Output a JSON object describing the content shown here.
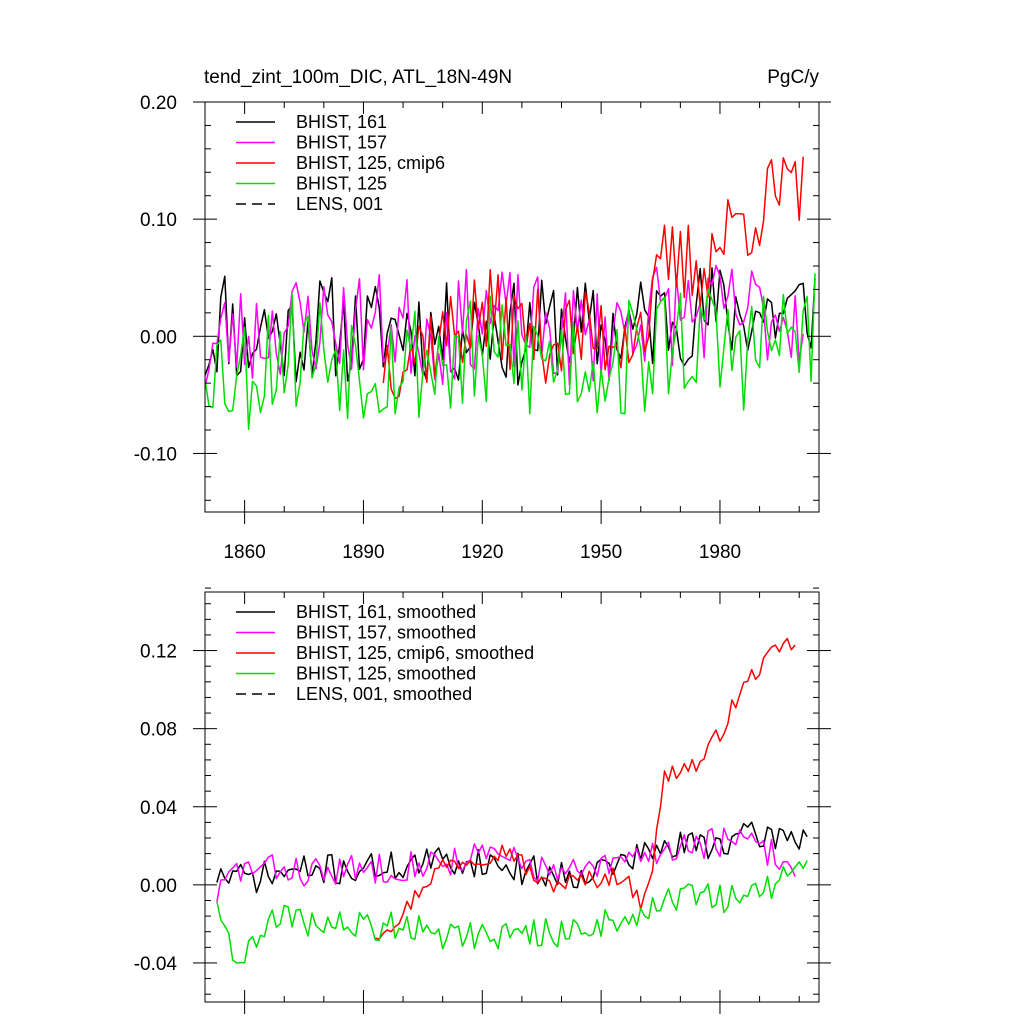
{
  "figure": {
    "title_left": "tend_zint_100m_DIC, ATL_18N-49N",
    "title_right": "PgC/y"
  },
  "chart_data": [
    {
      "type": "line",
      "panel": "top",
      "xlim": [
        1850,
        2005
      ],
      "ylim": [
        -0.15,
        0.2
      ],
      "xticks": [
        1860,
        1890,
        1920,
        1950,
        1980
      ],
      "xtick_labels": [
        "1860",
        "1890",
        "1920",
        "1950",
        "1980"
      ],
      "yticks": [
        -0.1,
        0.0,
        0.1,
        0.2
      ],
      "ytick_labels": [
        "-0.10",
        "0.00",
        "0.10",
        "0.20"
      ],
      "legend_position": "top-left",
      "series": [
        {
          "name": "BHIST, 161",
          "color": "#000000",
          "dash": "solid",
          "x_start": 1850,
          "x_end": 2004,
          "anchors": [
            [
              1850,
              -0.01
            ],
            [
              1855,
              0.02
            ],
            [
              1860,
              -0.01
            ],
            [
              1865,
              0.01
            ],
            [
              1870,
              0.0
            ],
            [
              1880,
              0.01
            ],
            [
              1890,
              0.0
            ],
            [
              1900,
              0.01
            ],
            [
              1910,
              0.0
            ],
            [
              1920,
              0.01
            ],
            [
              1930,
              0.0
            ],
            [
              1940,
              0.01
            ],
            [
              1950,
              0.0
            ],
            [
              1960,
              0.01
            ],
            [
              1970,
              0.02
            ],
            [
              1980,
              0.02
            ],
            [
              1990,
              0.02
            ],
            [
              2000,
              0.02
            ],
            [
              2004,
              0.03
            ]
          ],
          "amplitude": 0.045,
          "seed": 11
        },
        {
          "name": "BHIST, 157",
          "color": "#ff00ff",
          "dash": "solid",
          "x_start": 1850,
          "x_end": 2001,
          "anchors": [
            [
              1850,
              -0.02
            ],
            [
              1855,
              0.0
            ],
            [
              1860,
              0.0
            ],
            [
              1870,
              0.01
            ],
            [
              1880,
              0.01
            ],
            [
              1890,
              0.01
            ],
            [
              1900,
              0.01
            ],
            [
              1910,
              0.0
            ],
            [
              1920,
              0.02
            ],
            [
              1930,
              0.01
            ],
            [
              1940,
              0.0
            ],
            [
              1950,
              0.0
            ],
            [
              1960,
              0.02
            ],
            [
              1970,
              0.02
            ],
            [
              1980,
              0.02
            ],
            [
              1990,
              0.02
            ],
            [
              2001,
              0.02
            ]
          ],
          "amplitude": 0.045,
          "seed": 23
        },
        {
          "name": "BHIST, 125, cmip6",
          "color": "#ff0000",
          "dash": "solid",
          "x_start": 1895,
          "x_end": 2001,
          "anchors": [
            [
              1895,
              -0.02
            ],
            [
              1910,
              0.0
            ],
            [
              1920,
              0.02
            ],
            [
              1935,
              0.0
            ],
            [
              1950,
              0.0
            ],
            [
              1960,
              0.01
            ],
            [
              1963,
              0.02
            ],
            [
              1966,
              0.06
            ],
            [
              1975,
              0.06
            ],
            [
              1985,
              0.1
            ],
            [
              1990,
              0.11
            ],
            [
              1995,
              0.12
            ],
            [
              2001,
              0.12
            ]
          ],
          "amplitude": 0.04,
          "seed": 37
        },
        {
          "name": "BHIST, 125",
          "color": "#00dd00",
          "dash": "solid",
          "x_start": 1850,
          "x_end": 2004,
          "anchors": [
            [
              1850,
              -0.01
            ],
            [
              1855,
              -0.03
            ],
            [
              1860,
              -0.03
            ],
            [
              1870,
              -0.01
            ],
            [
              1880,
              -0.01
            ],
            [
              1890,
              -0.02
            ],
            [
              1900,
              -0.02
            ],
            [
              1910,
              -0.02
            ],
            [
              1920,
              -0.02
            ],
            [
              1930,
              -0.02
            ],
            [
              1940,
              -0.02
            ],
            [
              1950,
              -0.02
            ],
            [
              1960,
              -0.02
            ],
            [
              1970,
              0.0
            ],
            [
              1980,
              -0.01
            ],
            [
              1990,
              -0.01
            ],
            [
              2000,
              0.0
            ],
            [
              2004,
              0.01
            ]
          ],
          "amplitude": 0.055,
          "seed": 53
        },
        {
          "name": "LENS, 001",
          "color": "#000000",
          "dash": "dashed",
          "legend_only": true
        }
      ]
    },
    {
      "type": "line",
      "panel": "bottom",
      "xlim": [
        1850,
        2005
      ],
      "ylim": [
        -0.06,
        0.15
      ],
      "xticks": [
        1860,
        1890,
        1920,
        1950,
        1980
      ],
      "yticks": [
        -0.04,
        0.0,
        0.04,
        0.08,
        0.12
      ],
      "ytick_labels": [
        "-0.04",
        "0.00",
        "0.04",
        "0.08",
        "0.12"
      ],
      "legend_position": "top-left",
      "series": [
        {
          "name": "BHIST, 161, smoothed",
          "color": "#000000",
          "dash": "solid",
          "x_start": 1853,
          "x_end": 2002,
          "anchors": [
            [
              1853,
              0.005
            ],
            [
              1860,
              0.003
            ],
            [
              1870,
              0.006
            ],
            [
              1880,
              0.008
            ],
            [
              1890,
              0.008
            ],
            [
              1900,
              0.01
            ],
            [
              1910,
              0.012
            ],
            [
              1920,
              0.012
            ],
            [
              1930,
              0.008
            ],
            [
              1940,
              0.005
            ],
            [
              1950,
              0.008
            ],
            [
              1960,
              0.015
            ],
            [
              1970,
              0.02
            ],
            [
              1980,
              0.022
            ],
            [
              1990,
              0.025
            ],
            [
              2002,
              0.025
            ]
          ],
          "amplitude": 0.008,
          "seed": 71
        },
        {
          "name": "BHIST, 157, smoothed",
          "color": "#ff00ff",
          "dash": "solid",
          "x_start": 1853,
          "x_end": 1999,
          "anchors": [
            [
              1853,
              -0.005
            ],
            [
              1858,
              0.008
            ],
            [
              1870,
              0.008
            ],
            [
              1880,
              0.006
            ],
            [
              1890,
              0.008
            ],
            [
              1900,
              0.01
            ],
            [
              1910,
              0.012
            ],
            [
              1920,
              0.015
            ],
            [
              1930,
              0.012
            ],
            [
              1940,
              0.005
            ],
            [
              1950,
              0.008
            ],
            [
              1960,
              0.015
            ],
            [
              1970,
              0.02
            ],
            [
              1980,
              0.022
            ],
            [
              1990,
              0.02
            ],
            [
              1999,
              0.008
            ]
          ],
          "amplitude": 0.008,
          "seed": 83
        },
        {
          "name": "BHIST, 125, cmip6, smoothed",
          "color": "#ff0000",
          "dash": "solid",
          "x_start": 1893,
          "x_end": 1999,
          "anchors": [
            [
              1893,
              -0.025
            ],
            [
              1900,
              -0.015
            ],
            [
              1905,
              0.0
            ],
            [
              1910,
              0.01
            ],
            [
              1920,
              0.015
            ],
            [
              1927,
              0.018
            ],
            [
              1935,
              0.0
            ],
            [
              1945,
              0.002
            ],
            [
              1955,
              0.005
            ],
            [
              1960,
              -0.008
            ],
            [
              1963,
              0.01
            ],
            [
              1966,
              0.055
            ],
            [
              1970,
              0.06
            ],
            [
              1975,
              0.062
            ],
            [
              1980,
              0.078
            ],
            [
              1985,
              0.098
            ],
            [
              1990,
              0.112
            ],
            [
              1995,
              0.12
            ],
            [
              1999,
              0.125
            ]
          ],
          "amplitude": 0.005,
          "seed": 97
        },
        {
          "name": "BHIST, 125, smoothed",
          "color": "#00dd00",
          "dash": "solid",
          "x_start": 1853,
          "x_end": 2002,
          "anchors": [
            [
              1853,
              -0.005
            ],
            [
              1856,
              -0.028
            ],
            [
              1860,
              -0.04
            ],
            [
              1865,
              -0.02
            ],
            [
              1870,
              -0.018
            ],
            [
              1880,
              -0.02
            ],
            [
              1890,
              -0.022
            ],
            [
              1900,
              -0.02
            ],
            [
              1910,
              -0.025
            ],
            [
              1920,
              -0.025
            ],
            [
              1930,
              -0.025
            ],
            [
              1940,
              -0.025
            ],
            [
              1950,
              -0.02
            ],
            [
              1960,
              -0.015
            ],
            [
              1970,
              -0.005
            ],
            [
              1980,
              -0.008
            ],
            [
              1990,
              -0.005
            ],
            [
              2002,
              0.01
            ]
          ],
          "amplitude": 0.008,
          "seed": 109
        },
        {
          "name": "LENS, 001, smoothed",
          "color": "#000000",
          "dash": "dashed",
          "legend_only": true
        }
      ]
    }
  ]
}
